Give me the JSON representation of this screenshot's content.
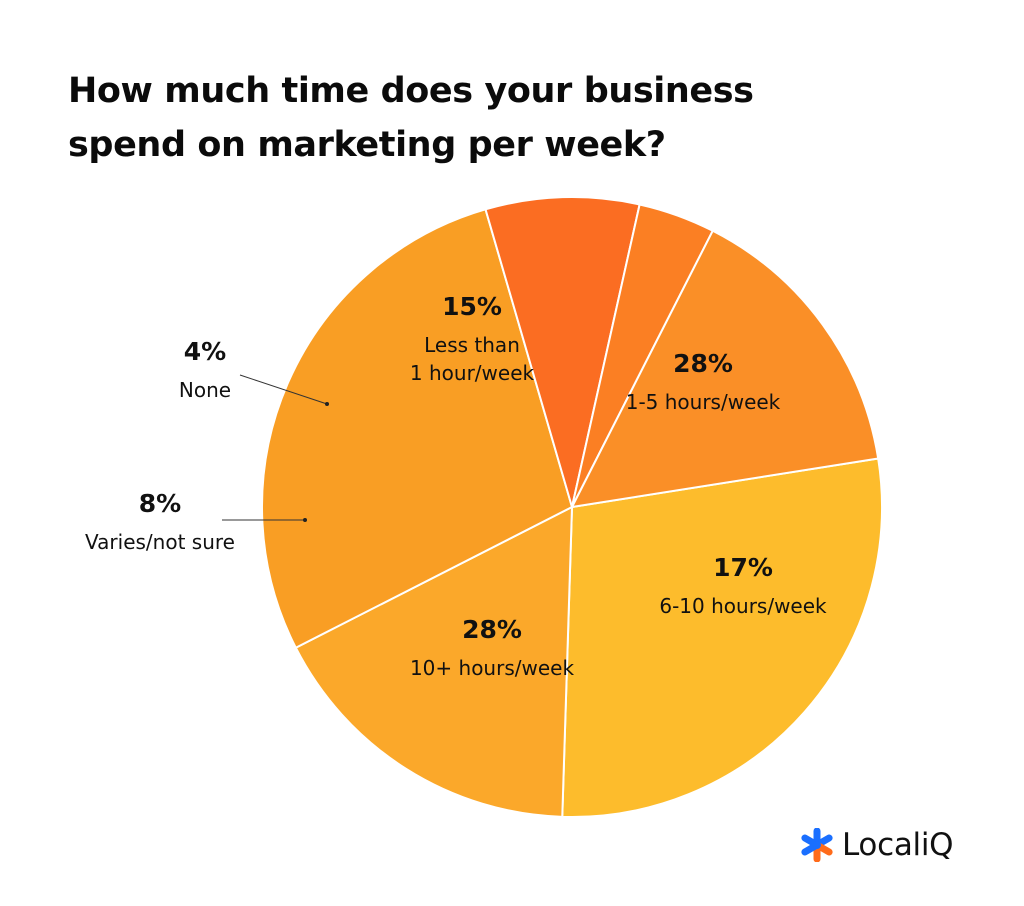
{
  "title_lines": [
    "How much time does your business",
    "spend on marketing per week?"
  ],
  "chart_data": {
    "type": "pie",
    "title": "How much time does your business spend on marketing per week?",
    "slices": [
      {
        "label": "1-5 hours/week",
        "value": 28,
        "value_label": "28%",
        "color": "#FDBC2C"
      },
      {
        "label": "6-10 hours/week",
        "value": 17,
        "value_label": "17%",
        "color": "#FBA82A"
      },
      {
        "label": "10+ hours/week",
        "value": 28,
        "value_label": "28%",
        "color": "#F99E24"
      },
      {
        "label": "Varies/not sure",
        "value": 8,
        "value_label": "8%",
        "color": "#FB6D22"
      },
      {
        "label": "None",
        "value": 4,
        "value_label": "4%",
        "color": "#FB7F23"
      },
      {
        "label": "Less than 1 hour/week",
        "label_lines": [
          "Less than",
          "1 hour/week"
        ],
        "value": 15,
        "value_label": "15%",
        "color": "#FA8F27"
      }
    ],
    "start_angle_deg": -9,
    "direction": "clockwise",
    "legend": "none"
  },
  "brand": {
    "name": "LocaliQ",
    "logo_colors": [
      "#1A6FFF",
      "#FF6B1A"
    ]
  }
}
